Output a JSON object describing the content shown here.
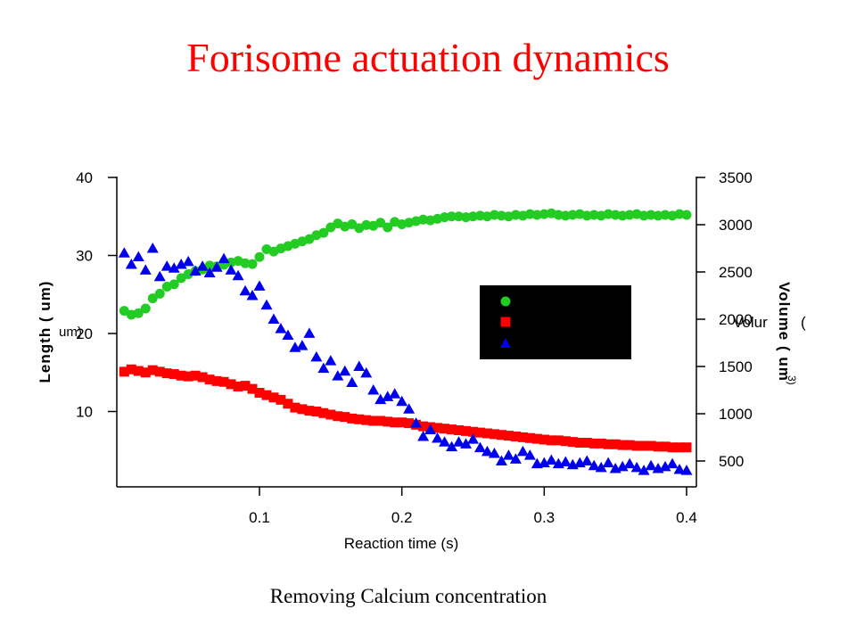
{
  "slide": {
    "title": "Forisome actuation dynamics",
    "caption": "Removing Calcium concentration"
  },
  "colors": {
    "title": "#ff0000",
    "green_series": "#22cc22",
    "red_series": "#ff0000",
    "blue_series": "#0000ee",
    "legend_box": "#000000"
  },
  "chart_data": {
    "type": "scatter",
    "title": "",
    "xlabel": "Reaction time (s)",
    "ylabel_left": "Length ( um)",
    "ylabel_right": "Volume ( um",
    "clipped_labels": {
      "left_fragment": "um)",
      "right_fragment": "Volur",
      "right_fragment2": "(",
      "right_superscript": "3)"
    },
    "xlim": [
      0,
      0.405
    ],
    "ylim_left": [
      0,
      40
    ],
    "ylim_right": [
      200,
      3500
    ],
    "x_ticks": [
      0.1,
      0.2,
      0.3,
      0.4
    ],
    "x_tick_labels": [
      "0.1",
      "0.2",
      "0.3",
      "0.4"
    ],
    "y_left_ticks": [
      10,
      20,
      30,
      40
    ],
    "y_left_tick_labels": [
      "10",
      "20",
      "30",
      "40"
    ],
    "y_right_ticks": [
      500,
      1000,
      1500,
      2000,
      2500,
      3000,
      3500
    ],
    "y_right_tick_labels": [
      "500",
      "1000",
      "1500",
      "2000",
      "2500",
      "3000",
      "3500"
    ],
    "grid": false,
    "legend": {
      "placement": "center-right",
      "entries": [
        "",
        "",
        ""
      ]
    },
    "series": [
      {
        "marker": "circle",
        "color": "#22cc22",
        "axis": "left",
        "x": [
          0.005,
          0.01,
          0.015,
          0.02,
          0.025,
          0.03,
          0.035,
          0.04,
          0.045,
          0.05,
          0.055,
          0.06,
          0.065,
          0.07,
          0.075,
          0.08,
          0.085,
          0.09,
          0.095,
          0.1,
          0.105,
          0.11,
          0.115,
          0.12,
          0.125,
          0.13,
          0.135,
          0.14,
          0.145,
          0.15,
          0.155,
          0.16,
          0.165,
          0.17,
          0.175,
          0.18,
          0.185,
          0.19,
          0.195,
          0.2,
          0.205,
          0.21,
          0.215,
          0.22,
          0.225,
          0.23,
          0.235,
          0.24,
          0.245,
          0.25,
          0.255,
          0.26,
          0.265,
          0.27,
          0.275,
          0.28,
          0.285,
          0.29,
          0.295,
          0.3,
          0.305,
          0.31,
          0.315,
          0.32,
          0.325,
          0.33,
          0.335,
          0.34,
          0.345,
          0.35,
          0.355,
          0.36,
          0.365,
          0.37,
          0.375,
          0.38,
          0.385,
          0.39,
          0.395,
          0.4
        ],
        "y": [
          22.9,
          22.4,
          22.6,
          23.2,
          24.5,
          25.1,
          26.0,
          26.3,
          27.1,
          27.6,
          28.0,
          28.2,
          28.7,
          28.6,
          28.8,
          29.1,
          29.3,
          29.0,
          28.9,
          29.8,
          30.8,
          30.5,
          30.9,
          31.2,
          31.5,
          31.8,
          32.1,
          32.6,
          32.9,
          33.6,
          34.1,
          33.7,
          34.0,
          33.5,
          33.9,
          33.8,
          34.2,
          33.6,
          34.3,
          34.0,
          34.2,
          34.4,
          34.6,
          34.5,
          34.7,
          34.9,
          35.0,
          35.0,
          34.9,
          35.0,
          35.1,
          35.0,
          35.2,
          35.1,
          35.0,
          35.2,
          35.1,
          35.3,
          35.2,
          35.3,
          35.4,
          35.2,
          35.1,
          35.2,
          35.3,
          35.1,
          35.2,
          35.1,
          35.3,
          35.2,
          35.1,
          35.2,
          35.3,
          35.1,
          35.2,
          35.1,
          35.2,
          35.1,
          35.3,
          35.2
        ]
      },
      {
        "marker": "square",
        "color": "#ff0000",
        "axis": "left",
        "x": [
          0.005,
          0.01,
          0.015,
          0.02,
          0.025,
          0.03,
          0.035,
          0.04,
          0.045,
          0.05,
          0.055,
          0.06,
          0.065,
          0.07,
          0.075,
          0.08,
          0.085,
          0.09,
          0.095,
          0.1,
          0.105,
          0.11,
          0.115,
          0.12,
          0.125,
          0.13,
          0.135,
          0.14,
          0.145,
          0.15,
          0.155,
          0.16,
          0.165,
          0.17,
          0.175,
          0.18,
          0.185,
          0.19,
          0.195,
          0.2,
          0.205,
          0.21,
          0.215,
          0.22,
          0.225,
          0.23,
          0.235,
          0.24,
          0.245,
          0.25,
          0.255,
          0.26,
          0.265,
          0.27,
          0.275,
          0.28,
          0.285,
          0.29,
          0.295,
          0.3,
          0.305,
          0.31,
          0.315,
          0.32,
          0.325,
          0.33,
          0.335,
          0.34,
          0.345,
          0.35,
          0.355,
          0.36,
          0.365,
          0.37,
          0.375,
          0.38,
          0.385,
          0.39,
          0.395,
          0.4
        ],
        "y": [
          15.1,
          15.4,
          15.2,
          15.0,
          15.3,
          15.1,
          14.9,
          14.8,
          14.6,
          14.5,
          14.6,
          14.4,
          14.1,
          13.9,
          13.8,
          13.5,
          13.2,
          13.3,
          12.9,
          12.4,
          12.1,
          11.8,
          11.5,
          11.0,
          10.5,
          10.3,
          10.1,
          10.0,
          9.8,
          9.6,
          9.4,
          9.3,
          9.1,
          9.0,
          8.9,
          8.8,
          8.8,
          8.7,
          8.6,
          8.6,
          8.5,
          8.3,
          8.1,
          8.0,
          7.9,
          7.8,
          7.7,
          7.6,
          7.5,
          7.4,
          7.3,
          7.2,
          7.1,
          7.0,
          6.9,
          6.8,
          6.7,
          6.6,
          6.5,
          6.4,
          6.3,
          6.3,
          6.2,
          6.1,
          6.0,
          6.0,
          5.9,
          5.9,
          5.8,
          5.8,
          5.7,
          5.7,
          5.6,
          5.6,
          5.6,
          5.5,
          5.5,
          5.4,
          5.4,
          5.4
        ]
      },
      {
        "marker": "triangle",
        "color": "#0000ee",
        "axis": "right",
        "x": [
          0.005,
          0.01,
          0.015,
          0.02,
          0.025,
          0.03,
          0.035,
          0.04,
          0.045,
          0.05,
          0.055,
          0.06,
          0.065,
          0.07,
          0.075,
          0.08,
          0.085,
          0.09,
          0.095,
          0.1,
          0.105,
          0.11,
          0.115,
          0.12,
          0.125,
          0.13,
          0.135,
          0.14,
          0.145,
          0.15,
          0.155,
          0.16,
          0.165,
          0.17,
          0.175,
          0.18,
          0.185,
          0.19,
          0.195,
          0.2,
          0.205,
          0.21,
          0.215,
          0.22,
          0.225,
          0.23,
          0.235,
          0.24,
          0.245,
          0.25,
          0.255,
          0.26,
          0.265,
          0.27,
          0.275,
          0.28,
          0.285,
          0.29,
          0.295,
          0.3,
          0.305,
          0.31,
          0.315,
          0.32,
          0.325,
          0.33,
          0.335,
          0.34,
          0.345,
          0.35,
          0.355,
          0.36,
          0.365,
          0.37,
          0.375,
          0.38,
          0.385,
          0.39,
          0.395,
          0.4
        ],
        "y": [
          2700,
          2580,
          2660,
          2520,
          2750,
          2450,
          2560,
          2540,
          2580,
          2610,
          2510,
          2560,
          2490,
          2550,
          2640,
          2520,
          2460,
          2300,
          2250,
          2350,
          2150,
          2000,
          1900,
          1830,
          1700,
          1720,
          1850,
          1600,
          1480,
          1560,
          1400,
          1450,
          1330,
          1500,
          1430,
          1250,
          1150,
          1180,
          1210,
          1130,
          1050,
          900,
          760,
          830,
          740,
          700,
          650,
          700,
          680,
          730,
          640,
          600,
          580,
          500,
          560,
          520,
          600,
          560,
          470,
          480,
          510,
          470,
          490,
          460,
          480,
          500,
          450,
          430,
          480,
          420,
          440,
          470,
          430,
          400,
          450,
          420,
          440,
          470,
          410,
          400
        ]
      }
    ]
  }
}
